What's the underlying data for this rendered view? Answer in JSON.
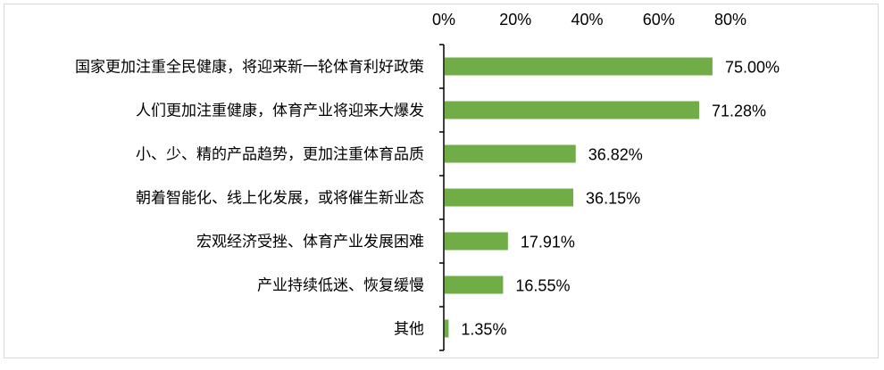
{
  "chart_data": {
    "type": "bar",
    "orientation": "horizontal",
    "title": "",
    "xlabel": "",
    "ylabel": "",
    "xlim": [
      0,
      80
    ],
    "x_ticks": [
      "0%",
      "20%",
      "40%",
      "60%",
      "80%"
    ],
    "x_tick_values": [
      0,
      20,
      40,
      60,
      80
    ],
    "x_axis_position": "top",
    "grid": false,
    "legend": "none",
    "bar_color": "#70AD47",
    "categories": [
      "国家更加注重全民健康，将迎来新一轮体育利好政策",
      "人们更加注重健康，体育产业将迎来大爆发",
      "小、少、精的产品趋势，更加注重体育品质",
      "朝着智能化、线上化发展，或将催生新业态",
      "宏观经济受挫、体育产业发展困难",
      "产业持续低迷、恢复缓慢",
      "其他"
    ],
    "values": [
      75.0,
      71.28,
      36.82,
      36.15,
      17.91,
      16.55,
      1.35
    ],
    "data_labels": [
      "75.00%",
      "71.28%",
      "36.82%",
      "36.15%",
      "17.91%",
      "16.55%",
      "1.35%"
    ]
  }
}
